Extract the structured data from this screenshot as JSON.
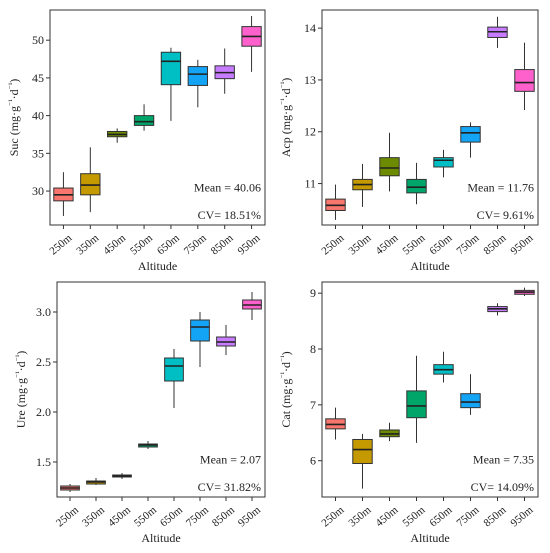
{
  "chart_data": [
    {
      "type": "box",
      "ylabel": "Suc (mg·g⁻¹·d⁻¹)",
      "xlabel": "Altitude",
      "categories": [
        "250m",
        "350m",
        "450m",
        "550m",
        "650m",
        "750m",
        "850m",
        "950m"
      ],
      "ylim": [
        25.5,
        54
      ],
      "yticks": [
        30,
        35,
        40,
        45,
        50
      ],
      "boxes": [
        {
          "min": 26.7,
          "q1": 28.7,
          "median": 29.5,
          "q3": 30.4,
          "max": 32.5
        },
        {
          "min": 27.2,
          "q1": 29.5,
          "median": 30.8,
          "q3": 32.3,
          "max": 35.8
        },
        {
          "min": 36.4,
          "q1": 37.2,
          "median": 37.5,
          "q3": 37.9,
          "max": 38.3
        },
        {
          "min": 38.0,
          "q1": 38.7,
          "median": 39.2,
          "q3": 40.0,
          "max": 41.5
        },
        {
          "min": 39.3,
          "q1": 44.1,
          "median": 47.2,
          "q3": 48.4,
          "max": 49.0
        },
        {
          "min": 41.1,
          "q1": 44.0,
          "median": 45.5,
          "q3": 46.5,
          "max": 47.4
        },
        {
          "min": 42.9,
          "q1": 44.9,
          "median": 45.7,
          "q3": 46.6,
          "max": 48.9
        },
        {
          "min": 45.8,
          "q1": 49.2,
          "median": 50.5,
          "q3": 51.8,
          "max": 53.2
        }
      ],
      "annotations": {
        "mean": "Mean = 40.06",
        "cv": "CV= 18.51%"
      }
    },
    {
      "type": "box",
      "ylabel": "Acp (mg·g⁻¹·d⁻¹)",
      "xlabel": "Altitude",
      "categories": [
        "250m",
        "350m",
        "450m",
        "550m",
        "650m",
        "750m",
        "850m",
        "950m"
      ],
      "ylim": [
        10.2,
        14.35
      ],
      "yticks": [
        11,
        12,
        13,
        14
      ],
      "boxes": [
        {
          "min": 10.3,
          "q1": 10.48,
          "median": 10.58,
          "q3": 10.7,
          "max": 10.98
        },
        {
          "min": 10.55,
          "q1": 10.88,
          "median": 10.98,
          "q3": 11.08,
          "max": 11.38
        },
        {
          "min": 10.85,
          "q1": 11.15,
          "median": 11.3,
          "q3": 11.5,
          "max": 11.98
        },
        {
          "min": 10.6,
          "q1": 10.82,
          "median": 10.93,
          "q3": 11.08,
          "max": 11.4
        },
        {
          "min": 11.12,
          "q1": 11.32,
          "median": 11.45,
          "q3": 11.5,
          "max": 11.65
        },
        {
          "min": 11.5,
          "q1": 11.8,
          "median": 11.98,
          "q3": 12.1,
          "max": 12.18
        },
        {
          "min": 13.62,
          "q1": 13.82,
          "median": 13.93,
          "q3": 14.02,
          "max": 14.22
        },
        {
          "min": 12.42,
          "q1": 12.78,
          "median": 12.95,
          "q3": 13.2,
          "max": 13.72
        }
      ],
      "annotations": {
        "mean": "Mean = 11.76",
        "cv": "CV= 9.61%"
      }
    },
    {
      "type": "box",
      "ylabel": "Ure (mg·g⁻¹·d⁻¹)",
      "xlabel": "Altitude",
      "categories": [
        "250m",
        "350m",
        "450m",
        "550m",
        "650m",
        "750m",
        "850m",
        "950m"
      ],
      "ylim": [
        1.15,
        3.3
      ],
      "yticks": [
        1.5,
        2.0,
        2.5,
        3.0
      ],
      "ytick_labels": [
        "1.5",
        "2.0",
        "2.5",
        "3.0"
      ],
      "boxes": [
        {
          "min": 1.2,
          "q1": 1.22,
          "median": 1.24,
          "q3": 1.26,
          "max": 1.28
        },
        {
          "min": 1.27,
          "q1": 1.28,
          "median": 1.3,
          "q3": 1.31,
          "max": 1.34
        },
        {
          "min": 1.33,
          "q1": 1.35,
          "median": 1.36,
          "q3": 1.37,
          "max": 1.39
        },
        {
          "min": 1.63,
          "q1": 1.65,
          "median": 1.67,
          "q3": 1.68,
          "max": 1.71
        },
        {
          "min": 2.04,
          "q1": 2.31,
          "median": 2.46,
          "q3": 2.54,
          "max": 2.63
        },
        {
          "min": 2.45,
          "q1": 2.71,
          "median": 2.85,
          "q3": 2.92,
          "max": 3.0
        },
        {
          "min": 2.57,
          "q1": 2.66,
          "median": 2.7,
          "q3": 2.75,
          "max": 2.87
        },
        {
          "min": 2.92,
          "q1": 3.03,
          "median": 3.07,
          "q3": 3.12,
          "max": 3.2
        }
      ],
      "annotations": {
        "mean": "Mean = 2.07",
        "cv": "CV= 31.82%"
      }
    },
    {
      "type": "box",
      "ylabel": "Cat (mg·g⁻¹·d⁻¹)",
      "xlabel": "Altitude",
      "categories": [
        "250m",
        "350m",
        "450m",
        "550m",
        "650m",
        "750m",
        "850m",
        "950m"
      ],
      "ylim": [
        5.35,
        9.2
      ],
      "yticks": [
        6,
        7,
        8,
        9
      ],
      "boxes": [
        {
          "min": 6.38,
          "q1": 6.57,
          "median": 6.65,
          "q3": 6.75,
          "max": 6.95
        },
        {
          "min": 5.5,
          "q1": 5.95,
          "median": 6.2,
          "q3": 6.38,
          "max": 6.48
        },
        {
          "min": 6.35,
          "q1": 6.43,
          "median": 6.48,
          "q3": 6.55,
          "max": 6.68
        },
        {
          "min": 6.32,
          "q1": 6.77,
          "median": 6.98,
          "q3": 7.25,
          "max": 7.88
        },
        {
          "min": 7.4,
          "q1": 7.55,
          "median": 7.63,
          "q3": 7.72,
          "max": 7.95
        },
        {
          "min": 6.82,
          "q1": 6.95,
          "median": 7.05,
          "q3": 7.2,
          "max": 7.55
        },
        {
          "min": 8.6,
          "q1": 8.67,
          "median": 8.72,
          "q3": 8.76,
          "max": 8.82
        },
        {
          "min": 8.95,
          "q1": 8.98,
          "median": 9.02,
          "q3": 9.05,
          "max": 9.1
        }
      ],
      "annotations": {
        "mean": "Mean = 7.35",
        "cv": "CV= 14.09%"
      }
    }
  ],
  "colors": [
    "#f8766d",
    "#c49a00",
    "#6d8b00",
    "#00a56a",
    "#00bfc4",
    "#14a4f5",
    "#c77cff",
    "#ff61cc"
  ]
}
